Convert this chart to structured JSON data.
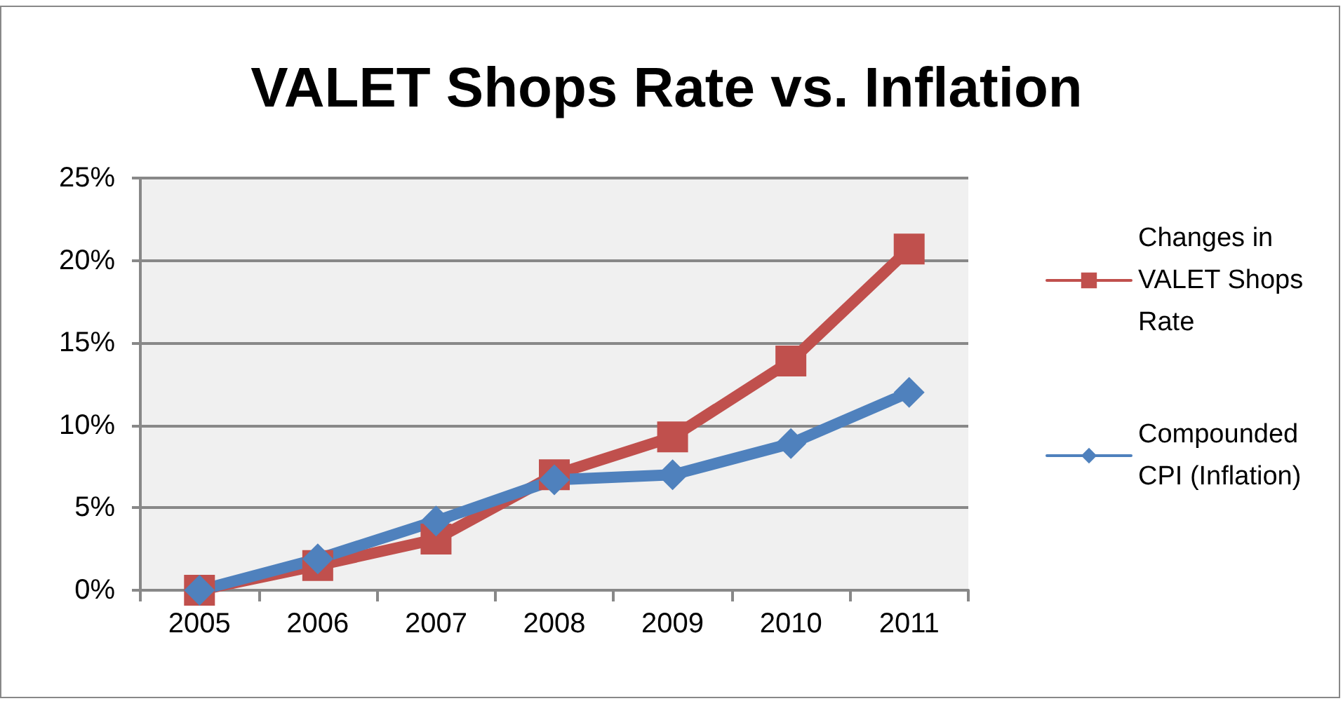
{
  "chart_data": {
    "type": "line",
    "title": "VALET Shops Rate vs. Inflation",
    "categories": [
      "2005",
      "2006",
      "2007",
      "2008",
      "2009",
      "2010",
      "2011"
    ],
    "series": [
      {
        "name": "Changes in VALET Shops Rate",
        "color": "#c0504d",
        "marker": "square",
        "values": [
          0,
          1.5,
          3.1,
          7.0,
          9.3,
          13.9,
          20.7
        ]
      },
      {
        "name": "Compounded CPI (Inflation)",
        "color": "#4f81bd",
        "marker": "diamond",
        "values": [
          0,
          1.9,
          4.2,
          6.7,
          7.0,
          8.9,
          12.0
        ]
      }
    ],
    "ylim": [
      0,
      25
    ],
    "yticks": [
      {
        "value": 0,
        "label": "0%"
      },
      {
        "value": 5,
        "label": "5%"
      },
      {
        "value": 10,
        "label": "10%"
      },
      {
        "value": 15,
        "label": "15%"
      },
      {
        "value": 20,
        "label": "20%"
      },
      {
        "value": 25,
        "label": "25%"
      }
    ],
    "grid": "y",
    "legend": "right",
    "line_style": "solid"
  }
}
